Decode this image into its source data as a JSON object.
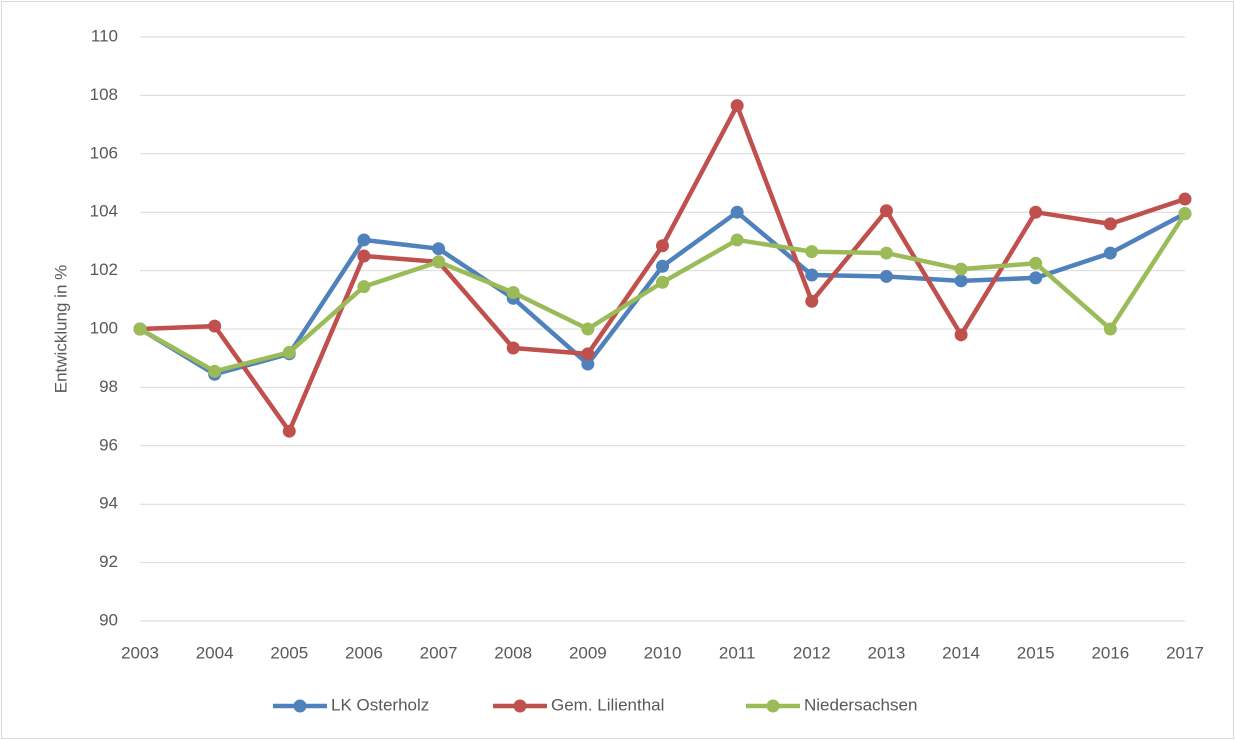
{
  "chart_data": {
    "type": "line",
    "y_label": "Entwicklung in %",
    "categories": [
      "2003",
      "2004",
      "2005",
      "2006",
      "2007",
      "2008",
      "2009",
      "2010",
      "2011",
      "2012",
      "2013",
      "2014",
      "2015",
      "2016",
      "2017"
    ],
    "series": [
      {
        "name": "LK Osterholz",
        "color": "#4f81bd",
        "values": [
          100,
          98.45,
          99.15,
          103.05,
          102.75,
          101.05,
          98.8,
          102.15,
          104.0,
          101.85,
          101.8,
          101.65,
          101.75,
          102.6,
          103.95
        ]
      },
      {
        "name": "Gem. Lilienthal",
        "color": "#c0504d",
        "values": [
          100,
          100.1,
          96.5,
          102.5,
          102.3,
          99.35,
          99.15,
          102.85,
          107.65,
          100.95,
          104.05,
          99.8,
          104.0,
          103.6,
          104.45
        ]
      },
      {
        "name": "Niedersachsen",
        "color": "#9bbb59",
        "values": [
          100,
          98.55,
          99.2,
          101.45,
          102.3,
          101.25,
          100.0,
          101.6,
          103.05,
          102.65,
          102.6,
          102.05,
          102.25,
          100.0,
          103.95
        ]
      }
    ],
    "ylim": [
      90,
      110
    ],
    "yticks": [
      90,
      92,
      94,
      96,
      98,
      100,
      102,
      104,
      106,
      108,
      110
    ],
    "grid": true,
    "legend": "bottom"
  }
}
